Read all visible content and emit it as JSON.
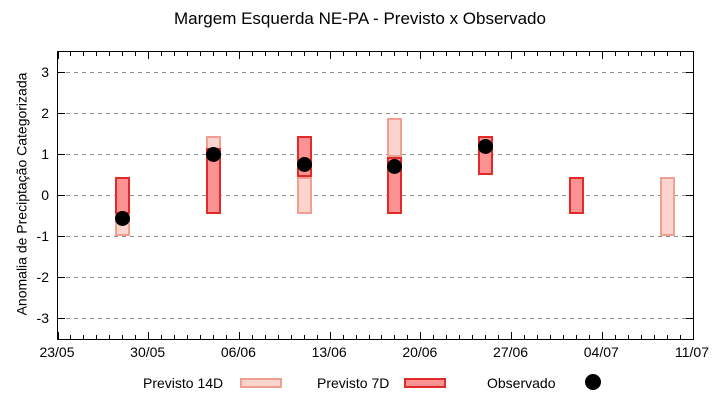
{
  "chart_data": {
    "type": "range-bar",
    "title": "Margem Esquerda NE-PA - Previsto x Observado",
    "ylabel": "Anomalia de Preciptação Categorizada",
    "ylim": [
      -3.5,
      3.5
    ],
    "y_ticks": [
      3,
      2,
      1,
      0,
      -1,
      -2,
      -3
    ],
    "x_axis": {
      "tick_labels": [
        "23/05",
        "30/05",
        "06/06",
        "13/06",
        "20/06",
        "27/06",
        "04/07",
        "11/07"
      ],
      "tick_interval_days": 7,
      "total_days": 49,
      "minor_tick_days": 1
    },
    "grid": true,
    "legend": {
      "p14": "Previsto 14D",
      "p7": "Previsto 7D",
      "obs": "Observado"
    },
    "colors": {
      "p14_fill": "#fbd4cd",
      "p14_border": "#f0a093",
      "p7_fill": "#fa9392",
      "p7_border": "#e32a28",
      "obs": "#000000",
      "grid": "#8f8f8f",
      "axis": "#000000"
    },
    "groups": [
      {
        "date": "28/05",
        "day": 5,
        "previsto_14d": [
          -1.0,
          0.45
        ],
        "previsto_7d": [
          -0.45,
          0.45
        ],
        "observado": -0.55
      },
      {
        "date": "04/06",
        "day": 12,
        "previsto_14d": [
          -0.45,
          1.45
        ],
        "previsto_7d": [
          -0.45,
          1.15
        ],
        "observado": 1.0
      },
      {
        "date": "11/06",
        "day": 19,
        "previsto_14d": [
          -0.45,
          0.45
        ],
        "previsto_7d": [
          0.45,
          1.45
        ],
        "observado": 0.75
      },
      {
        "date": "18/06",
        "day": 26,
        "previsto_14d": [
          0.95,
          1.9
        ],
        "previsto_7d": [
          -0.45,
          0.95
        ],
        "observado": 0.7
      },
      {
        "date": "25/06",
        "day": 33,
        "previsto_14d": null,
        "previsto_7d": [
          0.5,
          1.45
        ],
        "observado": 1.2
      },
      {
        "date": "02/07",
        "day": 40,
        "previsto_14d": null,
        "previsto_7d": [
          -0.45,
          0.45
        ],
        "observado": null
      },
      {
        "date": "09/07",
        "day": 47,
        "previsto_14d": [
          -1.0,
          0.45
        ],
        "previsto_7d": null,
        "observado": null
      }
    ]
  }
}
